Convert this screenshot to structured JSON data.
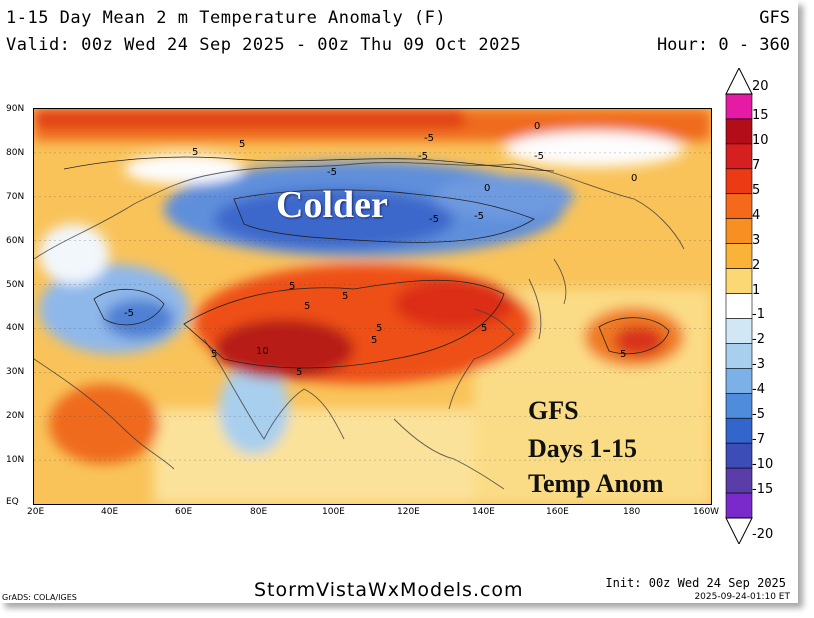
{
  "header": {
    "title": "1-15 Day Mean 2 m Temperature Anomaly (F)",
    "valid": "Valid: 00z Wed 24 Sep 2025 - 00z Thu 09 Oct 2025",
    "model": "GFS",
    "hours": "Hour: 0 - 360"
  },
  "map": {
    "lat_labels": [
      "90N",
      "80N",
      "70N",
      "60N",
      "50N",
      "40N",
      "30N",
      "20N",
      "10N",
      "EQ"
    ],
    "lon_labels": [
      "20E",
      "40E",
      "60E",
      "80E",
      "100E",
      "120E",
      "140E",
      "160E",
      "180",
      "160W"
    ],
    "overlay_colder": "Colder",
    "overlay_lines": [
      "GFS",
      "Days 1-15",
      "Temp Anom"
    ],
    "contour_labels": [
      "5",
      "5",
      "-5",
      "-5",
      "-5",
      "-5",
      "-5",
      "-5",
      "-5",
      "5",
      "5",
      "5",
      "10",
      "5",
      "5",
      "5",
      "5",
      "5",
      "5",
      "0",
      "0",
      "0"
    ]
  },
  "colorbar": {
    "ticks": [
      "20",
      "15",
      "10",
      "7",
      "5",
      "4",
      "3",
      "2",
      "1",
      "-1",
      "-2",
      "-3",
      "-4",
      "-5",
      "-7",
      "-10",
      "-15",
      "-20"
    ],
    "colors": [
      "#e61ba5",
      "#b40d1a",
      "#d61f1f",
      "#ec3a15",
      "#f46a1a",
      "#f88f22",
      "#fab238",
      "#fcd874",
      "#ffffff",
      "#d2e7f5",
      "#a9cfee",
      "#7bb1e6",
      "#4f8cdc",
      "#3366cc",
      "#3d4db8",
      "#5a3da8",
      "#7a2acb"
    ]
  },
  "footer": {
    "website": "StormVistaWxModels.com",
    "init": "Init: 00z Wed 24 Sep 2025",
    "stamp": "2025-09-24-01:10 ET",
    "credit": "GrADS: COLA/IGES"
  }
}
